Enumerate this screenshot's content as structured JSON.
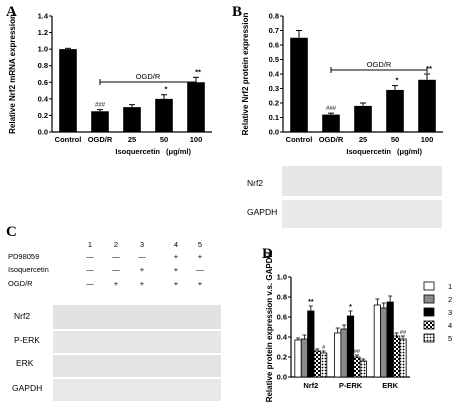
{
  "chart_data": [
    {
      "panel": "A",
      "type": "bar",
      "ylabel": "Relative Nrf2 mRNA expression",
      "categories": [
        "Control",
        "OGD/R",
        "25",
        "50",
        "100"
      ],
      "values": [
        1.0,
        0.25,
        0.3,
        0.4,
        0.6
      ],
      "errors": [
        0.01,
        0.02,
        0.03,
        0.05,
        0.06
      ],
      "annotations": [
        "",
        "###",
        "",
        "*",
        "**"
      ],
      "ylim": [
        0.0,
        1.4
      ],
      "yticks": [
        "0.0",
        "0.2",
        "0.4",
        "0.6",
        "0.8",
        "1.0",
        "1.2",
        "1.4"
      ],
      "group_label": "OGD/R",
      "xlabel": "Isoquercetin",
      "xlabel_unit": "(μg/ml)",
      "color": "#000000"
    },
    {
      "panel": "B",
      "type": "bar",
      "ylabel": "Relative Nrf2 protein expression",
      "categories": [
        "Control",
        "OGD/R",
        "25",
        "50",
        "100"
      ],
      "values": [
        0.65,
        0.12,
        0.18,
        0.29,
        0.36
      ],
      "errors": [
        0.05,
        0.01,
        0.02,
        0.03,
        0.04
      ],
      "annotations": [
        "",
        "###",
        "",
        "*",
        "**"
      ],
      "ylim": [
        0.0,
        0.8
      ],
      "yticks": [
        "0.0",
        "0.1",
        "0.2",
        "0.3",
        "0.4",
        "0.5",
        "0.6",
        "0.7",
        "0.8"
      ],
      "group_label": "OGD/R",
      "xlabel": "Isoquercetin",
      "xlabel_unit": "(μg/ml)",
      "blot_labels": [
        "Nrf2",
        "GAPDH"
      ],
      "color": "#000000"
    },
    {
      "panel": "D",
      "type": "bar",
      "ylabel": "Relative protein expression v.s. GAPDH",
      "categories": [
        "Nrf2",
        "P-ERK",
        "ERK"
      ],
      "ylim": [
        0.0,
        1.0
      ],
      "yticks": [
        "0.0",
        "0.2",
        "0.4",
        "0.6",
        "0.8",
        "1.0"
      ],
      "series": [
        {
          "name": "1",
          "values": [
            0.37,
            0.44,
            0.72
          ],
          "errors": [
            0.02,
            0.05,
            0.06
          ],
          "fill": "white"
        },
        {
          "name": "2",
          "values": [
            0.38,
            0.48,
            0.69
          ],
          "errors": [
            0.04,
            0.04,
            0.05
          ],
          "fill": "gray"
        },
        {
          "name": "3",
          "values": [
            0.66,
            0.61,
            0.75
          ],
          "errors": [
            0.05,
            0.05,
            0.06
          ],
          "fill": "black"
        },
        {
          "name": "4",
          "values": [
            0.26,
            0.2,
            0.41
          ],
          "errors": [
            0.02,
            0.02,
            0.03
          ],
          "fill": "checker"
        },
        {
          "name": "5",
          "values": [
            0.24,
            0.16,
            0.38
          ],
          "errors": [
            0.02,
            0.02,
            0.03
          ],
          "fill": "dots"
        }
      ],
      "annotations": [
        [
          "",
          "",
          "**",
          "",
          "#"
        ],
        [
          "",
          "",
          "*",
          "##",
          ""
        ],
        [
          "",
          "",
          "",
          "",
          "##"
        ]
      ],
      "legend": "right"
    }
  ],
  "panel_C": {
    "letter": "C",
    "lane_numbers": [
      "1",
      "2",
      "3",
      "4",
      "5"
    ],
    "rows": [
      {
        "label": "PD98059",
        "marks": [
          "—",
          "—",
          "—",
          "+",
          "+"
        ]
      },
      {
        "label": "Isoquercetin",
        "marks": [
          "—",
          "—",
          "+",
          "+",
          "—"
        ]
      },
      {
        "label": "OGD/R",
        "marks": [
          "—",
          "+",
          "+",
          "+",
          "+"
        ]
      }
    ],
    "blot_labels": [
      "Nrf2",
      "P-ERK",
      "ERK",
      "GAPDH"
    ]
  },
  "letters": {
    "A": "A",
    "B": "B",
    "D": "D"
  }
}
